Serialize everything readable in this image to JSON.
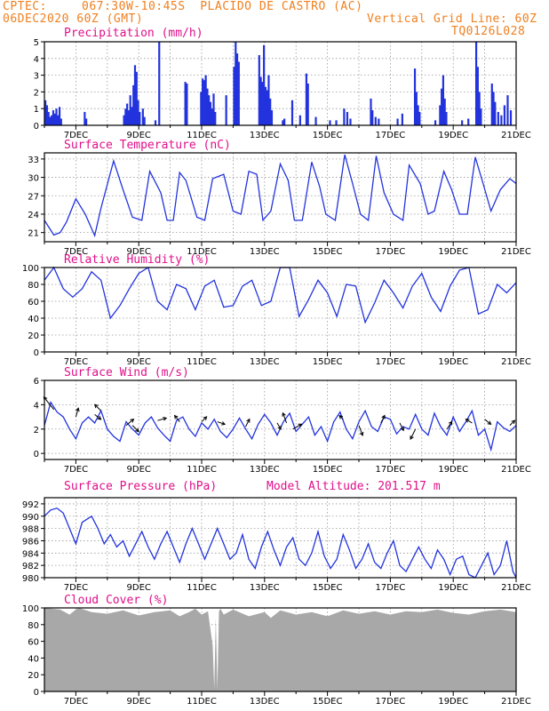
{
  "header": {
    "source": "CPTEC:",
    "location": "067:30W-10:45S  PLACIDO DE CASTRO (AC)",
    "run": "06DEC2020 60Z (GMT)",
    "grid_note": "Vertical Grid Line: 60Z",
    "model_code": "TQ0126L028"
  },
  "colors": {
    "title": "#e0108a",
    "header": "#f08020",
    "series": "#2233dd",
    "cloud": "#a8a8a8"
  },
  "x_labels": [
    "7DEC",
    "9DEC",
    "11DEC",
    "13DEC",
    "15DEC",
    "17DEC",
    "19DEC",
    "21DEC"
  ],
  "chart_data": [
    {
      "type": "bar",
      "title": "Precipitation (mm/h)",
      "ylim": [
        0,
        5
      ],
      "yticks": [
        "0",
        "1",
        "2",
        "3",
        "4",
        "5"
      ],
      "days": [
        6,
        21
      ],
      "events": [
        [
          6.0,
          1.5
        ],
        [
          6.05,
          1.2
        ],
        [
          6.1,
          0.8
        ],
        [
          6.15,
          0.5
        ],
        [
          6.2,
          0.6
        ],
        [
          6.25,
          0.9
        ],
        [
          6.3,
          0.7
        ],
        [
          6.35,
          1.0
        ],
        [
          6.4,
          0.6
        ],
        [
          6.45,
          1.1
        ],
        [
          6.5,
          0.4
        ],
        [
          7.25,
          0.8
        ],
        [
          7.3,
          0.4
        ],
        [
          8.5,
          0.6
        ],
        [
          8.55,
          1.0
        ],
        [
          8.6,
          1.3
        ],
        [
          8.65,
          0.9
        ],
        [
          8.7,
          1.8
        ],
        [
          8.75,
          1.1
        ],
        [
          8.8,
          2.4
        ],
        [
          8.85,
          3.6
        ],
        [
          8.9,
          3.2
        ],
        [
          8.95,
          1.5
        ],
        [
          9.0,
          0.8
        ],
        [
          9.1,
          1.0
        ],
        [
          9.15,
          0.5
        ],
        [
          9.5,
          0.3
        ],
        [
          9.62,
          5.0
        ],
        [
          10.45,
          2.6
        ],
        [
          10.5,
          2.5
        ],
        [
          10.95,
          2.0
        ],
        [
          11.0,
          2.8
        ],
        [
          11.05,
          2.7
        ],
        [
          11.1,
          3.0
        ],
        [
          11.15,
          2.2
        ],
        [
          11.2,
          1.8
        ],
        [
          11.25,
          1.4
        ],
        [
          11.3,
          1.0
        ],
        [
          11.35,
          1.9
        ],
        [
          11.4,
          0.8
        ],
        [
          11.75,
          1.8
        ],
        [
          12.0,
          3.5
        ],
        [
          12.05,
          5.0
        ],
        [
          12.1,
          4.3
        ],
        [
          12.15,
          3.8
        ],
        [
          12.8,
          4.2
        ],
        [
          12.85,
          2.9
        ],
        [
          12.9,
          2.6
        ],
        [
          12.95,
          4.8
        ],
        [
          13.0,
          2.3
        ],
        [
          13.05,
          2.1
        ],
        [
          13.1,
          3.0
        ],
        [
          13.15,
          1.6
        ],
        [
          13.2,
          0.9
        ],
        [
          13.55,
          0.3
        ],
        [
          13.6,
          0.4
        ],
        [
          13.85,
          1.5
        ],
        [
          14.1,
          0.6
        ],
        [
          14.3,
          3.1
        ],
        [
          14.35,
          2.5
        ],
        [
          14.6,
          0.5
        ],
        [
          15.05,
          0.3
        ],
        [
          15.25,
          0.3
        ],
        [
          15.5,
          1.0
        ],
        [
          15.6,
          0.8
        ],
        [
          15.7,
          0.4
        ],
        [
          16.35,
          1.6
        ],
        [
          16.4,
          0.9
        ],
        [
          16.5,
          0.5
        ],
        [
          16.6,
          0.4
        ],
        [
          17.2,
          0.4
        ],
        [
          17.35,
          0.7
        ],
        [
          17.75,
          3.4
        ],
        [
          17.8,
          2.0
        ],
        [
          17.85,
          1.2
        ],
        [
          17.9,
          0.8
        ],
        [
          18.4,
          0.3
        ],
        [
          18.55,
          1.2
        ],
        [
          18.6,
          2.2
        ],
        [
          18.65,
          3.0
        ],
        [
          18.7,
          1.6
        ],
        [
          18.75,
          0.8
        ],
        [
          19.25,
          0.3
        ],
        [
          19.45,
          0.4
        ],
        [
          19.7,
          5.0
        ],
        [
          19.75,
          3.5
        ],
        [
          19.8,
          2.0
        ],
        [
          19.85,
          1.0
        ],
        [
          20.2,
          2.5
        ],
        [
          20.25,
          2.0
        ],
        [
          20.3,
          1.4
        ],
        [
          20.4,
          0.8
        ],
        [
          20.5,
          0.6
        ],
        [
          20.6,
          1.2
        ],
        [
          20.7,
          1.8
        ],
        [
          20.8,
          0.9
        ]
      ]
    },
    {
      "type": "line",
      "title": "Surface Temperature (nC)",
      "ylim": [
        19.5,
        34
      ],
      "yticks": [
        "21",
        "24",
        "27",
        "30",
        "33"
      ],
      "x": [
        6.0,
        6.3,
        6.5,
        6.7,
        7.0,
        7.3,
        7.6,
        7.8,
        8.2,
        8.5,
        8.8,
        9.1,
        9.35,
        9.7,
        9.9,
        10.1,
        10.3,
        10.5,
        10.85,
        11.1,
        11.35,
        11.7,
        12.0,
        12.25,
        12.5,
        12.75,
        12.95,
        13.2,
        13.5,
        13.75,
        13.95,
        14.2,
        14.5,
        14.75,
        14.95,
        15.25,
        15.55,
        15.8,
        16.05,
        16.3,
        16.55,
        16.8,
        17.1,
        17.4,
        17.6,
        17.95,
        18.2,
        18.4,
        18.7,
        18.95,
        19.2,
        19.45,
        19.7,
        19.95,
        20.2,
        20.5,
        20.8,
        21.0
      ],
      "y": [
        23,
        20.6,
        21,
        22.7,
        26.5,
        24,
        20.5,
        25,
        32.7,
        28,
        23.5,
        23,
        31,
        27.5,
        23,
        23,
        30.8,
        29.5,
        23.5,
        23,
        29.8,
        30.5,
        24.5,
        24,
        31,
        30.5,
        23,
        24.5,
        32.2,
        29.5,
        23,
        23,
        32.5,
        28.5,
        24,
        23,
        33.7,
        29,
        24,
        23,
        33.5,
        27.5,
        24,
        23,
        32,
        29,
        24,
        24.5,
        31,
        28,
        24,
        24,
        33.3,
        29,
        24.5,
        28,
        29.8,
        29
      ]
    },
    {
      "type": "line",
      "title": "Relative Humidity (%)",
      "ylim": [
        0,
        100
      ],
      "yticks": [
        "0",
        "20",
        "40",
        "60",
        "80",
        "100"
      ],
      "x": [
        6.0,
        6.3,
        6.6,
        6.9,
        7.2,
        7.5,
        7.8,
        8.1,
        8.4,
        8.7,
        9.0,
        9.3,
        9.6,
        9.9,
        10.2,
        10.5,
        10.8,
        11.1,
        11.4,
        11.7,
        12.0,
        12.3,
        12.6,
        12.9,
        13.2,
        13.5,
        13.8,
        14.1,
        14.4,
        14.7,
        15.0,
        15.3,
        15.6,
        15.9,
        16.2,
        16.5,
        16.8,
        17.1,
        17.4,
        17.7,
        18.0,
        18.3,
        18.6,
        18.9,
        19.2,
        19.5,
        19.8,
        20.1,
        20.4,
        20.7,
        21.0
      ],
      "y": [
        85,
        100,
        75,
        65,
        75,
        95,
        85,
        40,
        55,
        75,
        93,
        100,
        60,
        50,
        80,
        75,
        50,
        78,
        85,
        53,
        55,
        78,
        85,
        55,
        60,
        100,
        100,
        42,
        62,
        85,
        70,
        42,
        80,
        78,
        35,
        58,
        85,
        70,
        52,
        78,
        93,
        65,
        48,
        78,
        97,
        100,
        45,
        50,
        80,
        70,
        82
      ]
    },
    {
      "type": "line",
      "title": "Surface Wind (m/s)",
      "ylim": [
        -0.5,
        6
      ],
      "yticks": [
        "0",
        "2",
        "4",
        "6"
      ],
      "x": [
        6.0,
        6.2,
        6.4,
        6.6,
        6.8,
        7.0,
        7.2,
        7.4,
        7.6,
        7.8,
        8.0,
        8.2,
        8.4,
        8.6,
        8.8,
        9.0,
        9.2,
        9.4,
        9.6,
        9.8,
        10.0,
        10.2,
        10.4,
        10.6,
        10.8,
        11.0,
        11.2,
        11.4,
        11.6,
        11.8,
        12.0,
        12.2,
        12.4,
        12.6,
        12.8,
        13.0,
        13.2,
        13.4,
        13.6,
        13.8,
        14.0,
        14.2,
        14.4,
        14.6,
        14.8,
        15.0,
        15.2,
        15.4,
        15.6,
        15.8,
        16.0,
        16.2,
        16.4,
        16.6,
        16.8,
        17.0,
        17.2,
        17.4,
        17.6,
        17.8,
        18.0,
        18.2,
        18.4,
        18.6,
        18.8,
        19.0,
        19.2,
        19.4,
        19.6,
        19.8,
        20.0,
        20.2,
        20.4,
        20.6,
        20.8,
        21.0
      ],
      "y": [
        2.3,
        4.2,
        3.4,
        3.0,
        2.0,
        1.2,
        2.5,
        3.0,
        2.5,
        3.5,
        2.0,
        1.4,
        1.0,
        2.6,
        2.0,
        1.5,
        2.5,
        3.0,
        2.1,
        1.5,
        1.0,
        2.7,
        3.0,
        2.0,
        1.4,
        2.5,
        2.0,
        2.8,
        1.8,
        1.3,
        2.0,
        2.9,
        2.0,
        1.2,
        2.4,
        3.2,
        2.5,
        1.5,
        2.6,
        3.3,
        1.8,
        2.4,
        3.0,
        1.5,
        2.2,
        1.0,
        2.6,
        3.4,
        2.0,
        1.2,
        2.6,
        3.5,
        2.2,
        1.8,
        3.0,
        2.8,
        1.6,
        2.2,
        2.0,
        3.2,
        2.0,
        1.5,
        3.3,
        2.2,
        1.5,
        3.0,
        1.8,
        2.6,
        3.5,
        1.5,
        2.0,
        0.3,
        2.6,
        2.1,
        1.8,
        2.3
      ],
      "arrows": [
        [
          6.3,
          3.6,
          -0.8,
          1.0
        ],
        [
          7.0,
          3.0,
          0.2,
          0.7
        ],
        [
          7.6,
          3.2,
          0.5,
          -0.4
        ],
        [
          7.8,
          3.5,
          -0.5,
          0.5
        ],
        [
          8.6,
          2.3,
          0.6,
          0.5
        ],
        [
          8.8,
          2.3,
          0.5,
          -0.5
        ],
        [
          9.6,
          2.7,
          0.7,
          0.2
        ],
        [
          10.3,
          2.6,
          -0.4,
          0.5
        ],
        [
          11.0,
          2.6,
          0.4,
          0.4
        ],
        [
          11.5,
          2.6,
          0.6,
          -0.2
        ],
        [
          12.4,
          2.2,
          0.3,
          0.6
        ],
        [
          13.4,
          2.5,
          0.3,
          -0.5
        ],
        [
          13.7,
          2.5,
          -0.3,
          0.8
        ],
        [
          13.9,
          2.0,
          0.7,
          0.4
        ],
        [
          15.5,
          2.8,
          -0.3,
          0.3
        ],
        [
          16.0,
          2.3,
          0.3,
          -0.8
        ],
        [
          16.7,
          2.5,
          0.3,
          0.6
        ],
        [
          17.3,
          2.5,
          0.3,
          -0.6
        ],
        [
          17.8,
          2.0,
          -0.4,
          -0.8
        ],
        [
          18.8,
          2.0,
          0.4,
          0.6
        ],
        [
          19.6,
          2.5,
          -0.5,
          0.3
        ],
        [
          20.0,
          2.8,
          0.5,
          -0.4
        ],
        [
          20.8,
          2.3,
          0.4,
          0.4
        ]
      ]
    },
    {
      "type": "line",
      "title": "Surface Pressure (hPa)",
      "annotation": "Model Altitude: 201.517 m",
      "ylim": [
        980,
        993
      ],
      "yticks": [
        "980",
        "982",
        "984",
        "986",
        "988",
        "990",
        "992"
      ],
      "x": [
        6.0,
        6.2,
        6.4,
        6.6,
        6.8,
        7.0,
        7.2,
        7.5,
        7.7,
        7.9,
        8.1,
        8.3,
        8.5,
        8.7,
        8.9,
        9.1,
        9.3,
        9.5,
        9.7,
        9.9,
        10.1,
        10.3,
        10.5,
        10.7,
        10.9,
        11.1,
        11.3,
        11.5,
        11.7,
        11.9,
        12.1,
        12.3,
        12.5,
        12.7,
        12.9,
        13.1,
        13.3,
        13.5,
        13.7,
        13.9,
        14.1,
        14.3,
        14.5,
        14.7,
        14.9,
        15.1,
        15.3,
        15.5,
        15.7,
        15.9,
        16.1,
        16.3,
        16.5,
        16.7,
        16.9,
        17.1,
        17.3,
        17.5,
        17.7,
        17.9,
        18.1,
        18.3,
        18.5,
        18.7,
        18.9,
        19.1,
        19.3,
        19.5,
        19.7,
        19.9,
        20.1,
        20.3,
        20.5,
        20.7,
        20.9,
        21.0
      ],
      "y": [
        990,
        991,
        991.3,
        990.5,
        988,
        985.5,
        989,
        990,
        988,
        985.5,
        987,
        985,
        986,
        983.5,
        985.5,
        987.5,
        985,
        983,
        985.5,
        987.5,
        985,
        982.5,
        985.5,
        988,
        985.5,
        983,
        985.5,
        988,
        985.5,
        983,
        984,
        987,
        983,
        981.5,
        985,
        987.5,
        984.5,
        982,
        985,
        986.5,
        983,
        982,
        984,
        987.5,
        983.5,
        981.5,
        983,
        987,
        984.5,
        981.5,
        983,
        985.5,
        982.5,
        981.5,
        984,
        986,
        982,
        981,
        983,
        985,
        983,
        981.5,
        984.5,
        983,
        980.5,
        983,
        983.5,
        980.5,
        980,
        982,
        984,
        980.5,
        982,
        986,
        981,
        980
      ]
    },
    {
      "type": "area",
      "title": "Cloud Cover (%)",
      "ylim": [
        0,
        100
      ],
      "yticks": [
        "0",
        "20",
        "40",
        "60",
        "80",
        "100"
      ],
      "x": [
        6.0,
        6.5,
        6.8,
        7.0,
        7.1,
        7.5,
        8.0,
        8.5,
        9.0,
        9.5,
        10.0,
        10.3,
        10.6,
        10.8,
        11.0,
        11.2,
        11.35,
        11.4,
        11.45,
        11.5,
        11.55,
        11.6,
        11.7,
        11.9,
        12.0,
        12.5,
        13.0,
        13.2,
        13.5,
        14.0,
        14.5,
        15.0,
        15.5,
        16.0,
        16.5,
        17.0,
        17.5,
        18.0,
        18.5,
        19.0,
        19.5,
        20.0,
        20.5,
        21.0
      ],
      "y": [
        100,
        98,
        92,
        98,
        100,
        95,
        93,
        97,
        91,
        95,
        97,
        90,
        95,
        99,
        92,
        96,
        55,
        3,
        88,
        2,
        96,
        99,
        92,
        96,
        98,
        90,
        95,
        88,
        97,
        92,
        95,
        90,
        97,
        93,
        96,
        92,
        96,
        95,
        98,
        94,
        92,
        96,
        98,
        95
      ]
    }
  ]
}
